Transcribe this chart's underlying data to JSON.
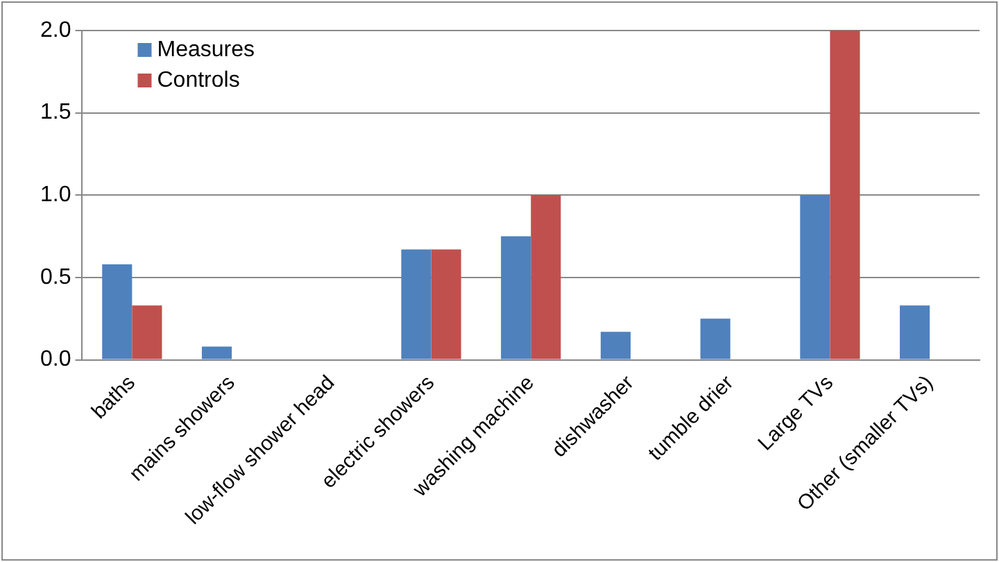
{
  "chart_data": {
    "type": "bar",
    "categories": [
      "baths",
      "mains showers",
      "low-flow shower head",
      "electric showers",
      "washing machine",
      "dishwasher",
      "tumble drier",
      "Large TVs",
      "Other (smaller TVs)"
    ],
    "series": [
      {
        "name": "Measures",
        "color": "#4f81bd",
        "values": [
          0.58,
          0.08,
          0,
          0.67,
          0.75,
          0.17,
          0.25,
          1.0,
          0.33
        ]
      },
      {
        "name": "Controls",
        "color": "#c0504d",
        "values": [
          0.33,
          0,
          0,
          0.67,
          1.0,
          0,
          0,
          2.0,
          0
        ]
      }
    ],
    "ylim": [
      0,
      2
    ],
    "yticks": [
      {
        "value": 0,
        "label": "0.0"
      },
      0.5,
      {
        "value": 1,
        "label": "1.0"
      },
      1.5,
      {
        "value": 2,
        "label": "2.0"
      }
    ],
    "grid": "y",
    "legend": "top left"
  }
}
